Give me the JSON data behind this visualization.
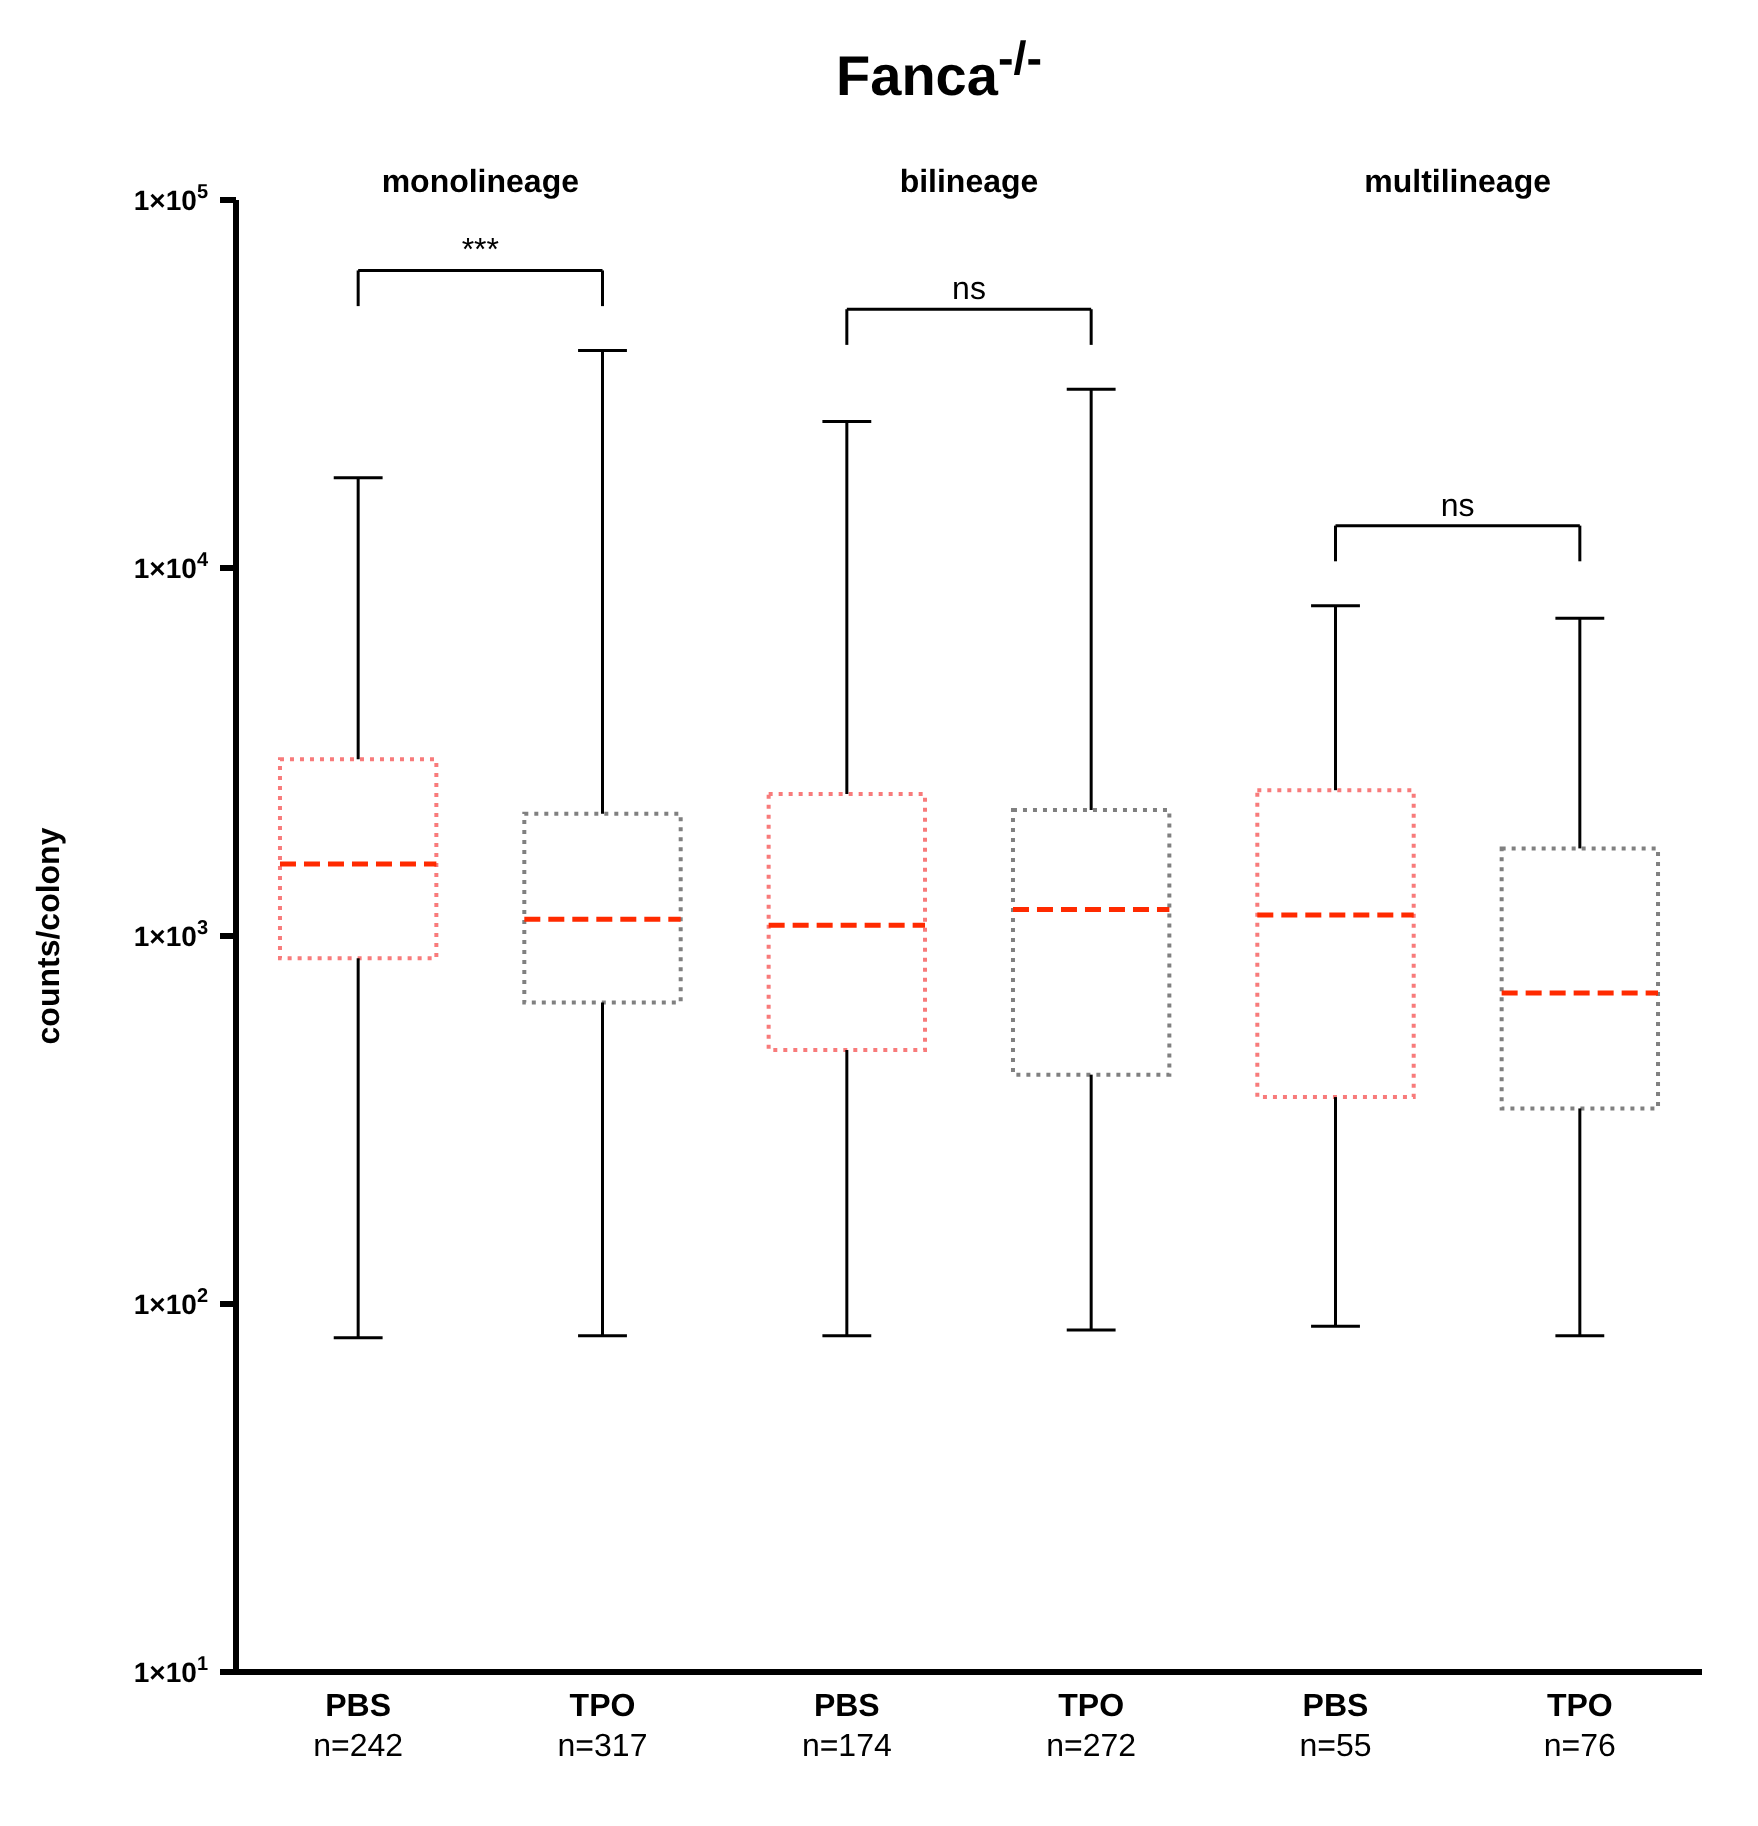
{
  "chart_data": {
    "type": "box",
    "title": "Fanca$^{-/-}$",
    "ylabel": "counts/colony",
    "categories": [
      "PBS\nn=242",
      "TPO\nn=317",
      "PBS\nn=174",
      "TPO\nn=272",
      "PBS\nn=55",
      "TPO\nn=76"
    ],
    "boxes": [
      {
        "low": 81,
        "q1": 870,
        "median": 1570,
        "q3": 3020,
        "high": 17600
      },
      {
        "low": 82,
        "q1": 660,
        "median": 1110,
        "q3": 2150,
        "high": 39000
      },
      {
        "low": 82,
        "q1": 490,
        "median": 1070,
        "q3": 2430,
        "high": 25000
      },
      {
        "low": 85,
        "q1": 420,
        "median": 1180,
        "q3": 2200,
        "high": 30600
      },
      {
        "low": 87,
        "q1": 365,
        "median": 1140,
        "q3": 2490,
        "high": 7900
      },
      {
        "low": 82,
        "q1": 340,
        "median": 700,
        "q3": 1730,
        "high": 7300
      }
    ],
    "colors": [
      "#f87b7b",
      "#808080",
      "#f87b7b",
      "#808080",
      "#f87b7b",
      "#808080"
    ],
    "log": true,
    "ylim": [
      10,
      100000
    ],
    "yticks": [
      {
        "value": 10,
        "label": "1×10$^{1}$"
      },
      {
        "value": 100,
        "label": "1×10$^{2}$"
      },
      {
        "value": 1000,
        "label": "1×10$^{3}$"
      },
      {
        "value": 10000,
        "label": "1×10$^{4}$"
      },
      {
        "value": 100000,
        "label": "1×10$^{5}$"
      }
    ],
    "annotations": [
      "monolineage",
      "bilineage",
      "multilineage",
      "***",
      "ns",
      "ns"
    ]
  }
}
